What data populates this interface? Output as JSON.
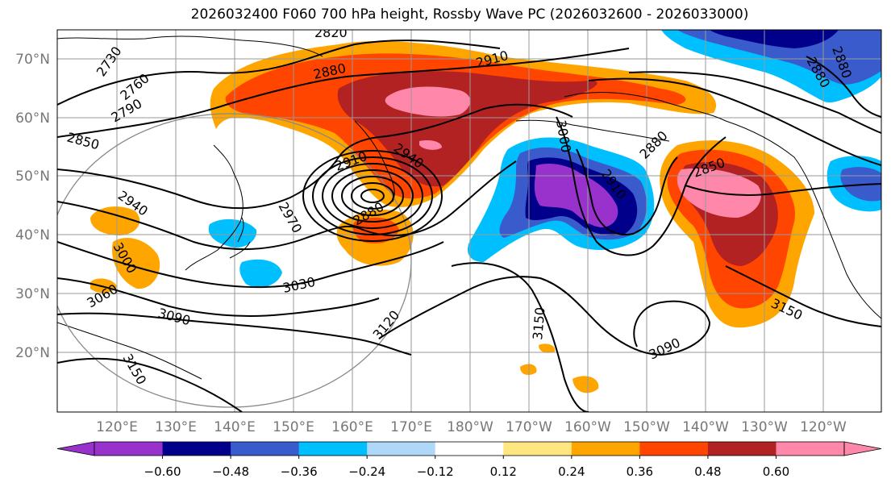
{
  "title": "2026032400 F060 700 hPa height, Rossby Wave PC (2026032600 - 2026033000)",
  "lat_labels": [
    "70°N",
    "60°N",
    "50°N",
    "40°N",
    "30°N",
    "20°N"
  ],
  "lon_labels": [
    "120°E",
    "130°E",
    "140°E",
    "150°E",
    "160°E",
    "170°E",
    "180°W",
    "170°W",
    "160°W",
    "150°W",
    "140°W",
    "130°W",
    "120°W"
  ],
  "contour_labels": [
    "2730",
    "2760",
    "2790",
    "2820",
    "2850",
    "2880",
    "2910",
    "2940",
    "2880",
    "2970",
    "3000",
    "3030",
    "3060",
    "3090",
    "3120",
    "3150",
    "3090",
    "3150",
    "2910",
    "3000",
    "2880",
    "2910",
    "2850",
    "3150",
    "2880",
    "2880",
    "2940"
  ],
  "colorbar": {
    "colors": [
      "#9932CC",
      "#00008B",
      "#3A5BCC",
      "#00BFFF",
      "#ADD8F7",
      "#FFFFFF",
      "#FFE680",
      "#FFA500",
      "#FF4500",
      "#B22222",
      "#FF88AA"
    ],
    "tick_labels": [
      "−0.60",
      "−0.48",
      "−0.36",
      "−0.24",
      "−0.12",
      "0.12",
      "0.24",
      "0.36",
      "0.48",
      "0.60"
    ],
    "under_color": "#9932CC",
    "over_color": "#FF88AA"
  },
  "colors": {
    "land": "#000000",
    "grid": "#999999",
    "contour": "#000000",
    "tick_label": "#777777"
  }
}
